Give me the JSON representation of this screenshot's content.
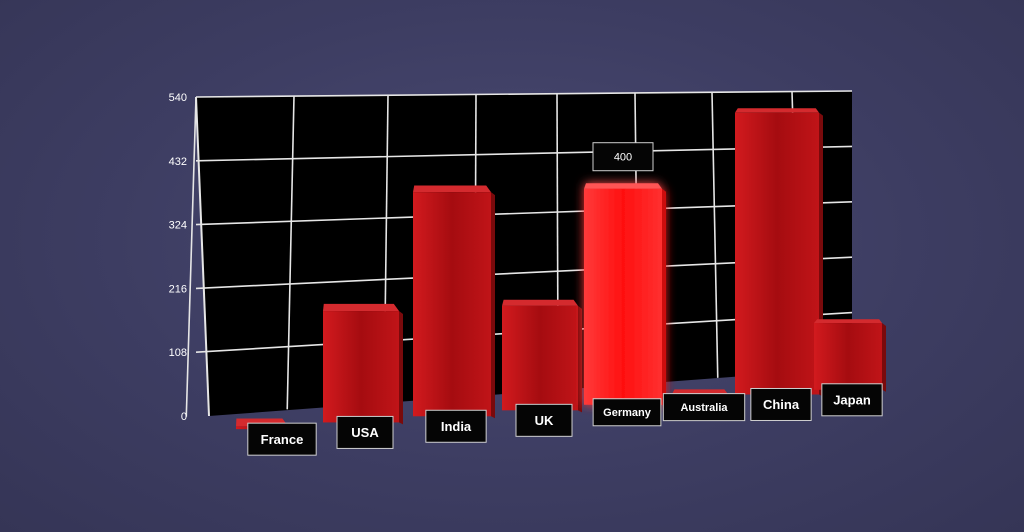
{
  "chart_data": {
    "type": "bar",
    "categories": [
      "France",
      "USA",
      "India",
      "UK",
      "Germany",
      "Australia",
      "China",
      "Japan"
    ],
    "values": [
      5,
      195,
      400,
      190,
      400,
      10,
      540,
      130
    ],
    "highlighted_category": "Germany",
    "data_labels": [
      {
        "category": "Germany",
        "text": "400"
      }
    ],
    "yticks": [
      "0",
      "108",
      "216",
      "324",
      "432",
      "540"
    ],
    "ylim": [
      0,
      540
    ],
    "grid": true,
    "title": "",
    "xlabel": "",
    "ylabel": "",
    "colors": {
      "bar": "#b81014",
      "bar_highlight": "#ff1f1f",
      "plot_background": "#000000",
      "grid": "#e6e6e6",
      "page_background": "#3d3d62"
    }
  }
}
